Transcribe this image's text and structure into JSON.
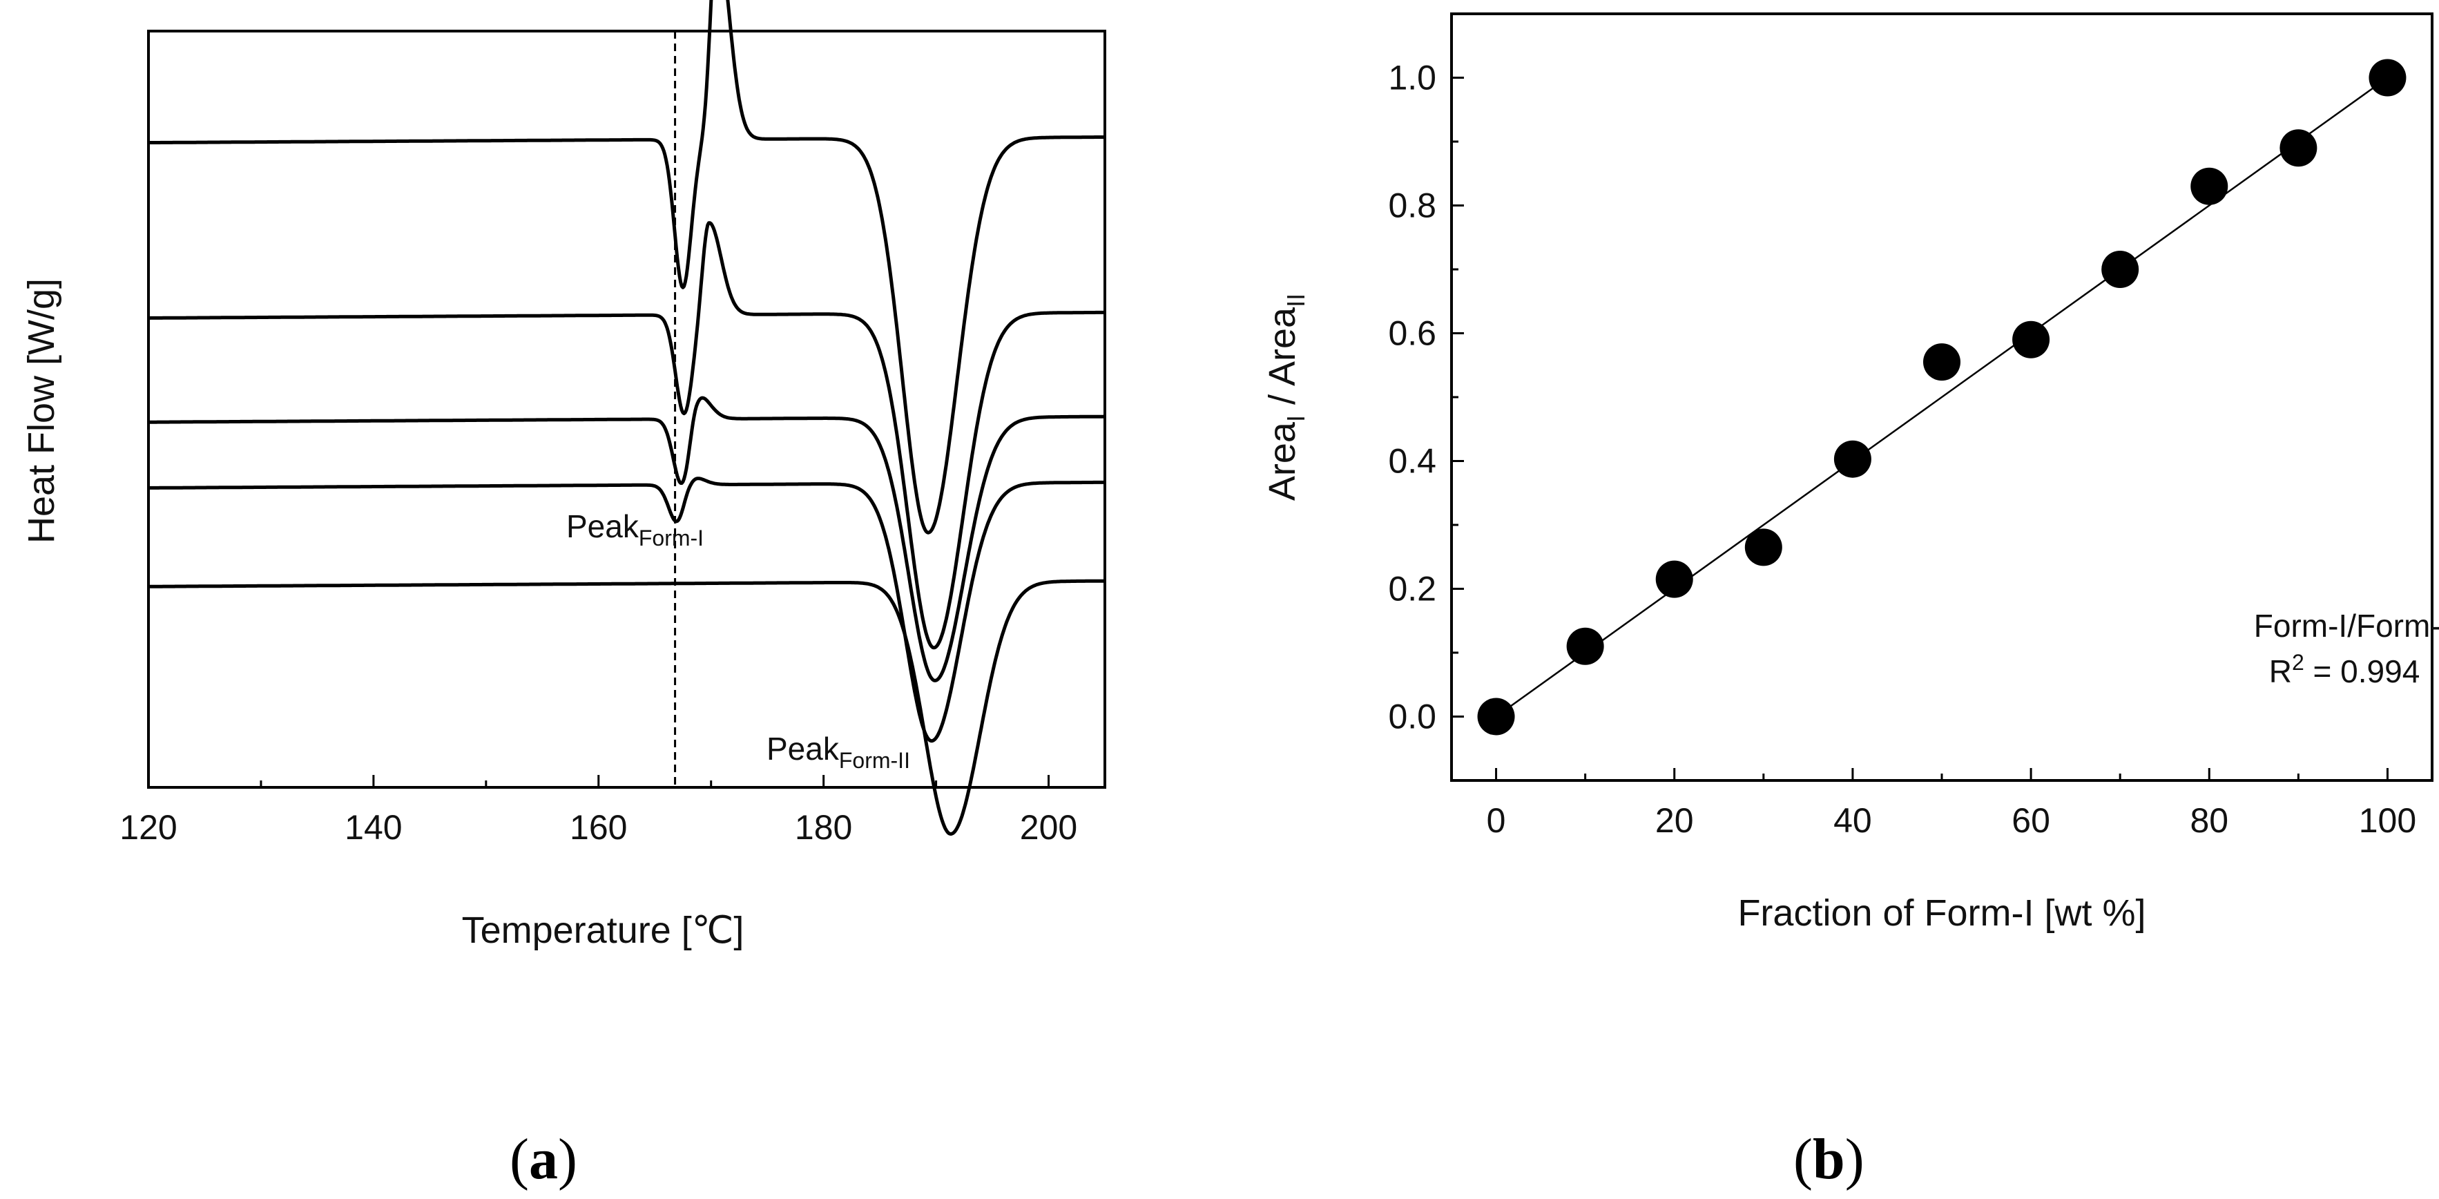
{
  "chart_data": [
    {
      "id": "a",
      "type": "line",
      "caption": "a",
      "xlabel": "Temperature [℃]",
      "ylabel": "Heat Flow [W/g]",
      "xlim": [
        120,
        205
      ],
      "xticks": [
        120,
        140,
        160,
        180,
        200
      ],
      "yticks_shown": false,
      "reference_line": {
        "x": 166.8,
        "style": "dashed"
      },
      "annotations": [
        {
          "label": "Peak",
          "subscript": "Form-I",
          "near_x": 167.5
        },
        {
          "label": "Peak",
          "subscript": "Form-II",
          "near_x": 191.5
        }
      ],
      "series": [
        {
          "name": "trace-1",
          "baseline": 5.6,
          "dip1": {
            "x": 167.5,
            "depth": 1.35
          },
          "exo": {
            "x": 170.5,
            "height": 1.9
          },
          "dip2": {
            "x": 189.3,
            "depth": 3.6
          }
        },
        {
          "name": "trace-2",
          "baseline": 4.0,
          "dip1": {
            "x": 167.6,
            "depth": 0.9
          },
          "exo": {
            "x": 169.8,
            "height": 0.85
          },
          "dip2": {
            "x": 189.8,
            "depth": 3.05
          }
        },
        {
          "name": "trace-3",
          "baseline": 3.05,
          "dip1": {
            "x": 167.4,
            "depth": 0.6
          },
          "exo": {
            "x": 168.7,
            "height": 0.25
          },
          "dip2": {
            "x": 189.9,
            "depth": 2.4
          }
        },
        {
          "name": "trace-4",
          "baseline": 2.45,
          "dip1": {
            "x": 167.0,
            "depth": 0.35
          },
          "exo": {
            "x": 168.0,
            "height": 0.1
          },
          "dip2": {
            "x": 189.6,
            "depth": 2.35
          }
        },
        {
          "name": "trace-5",
          "baseline": 1.55,
          "dip1": null,
          "exo": null,
          "dip2": {
            "x": 191.3,
            "depth": 2.3
          }
        }
      ]
    },
    {
      "id": "b",
      "type": "scatter",
      "caption": "b",
      "xlabel": "Fraction of Form-I [wt %]",
      "ylabel": "Area",
      "ylabel_sub1": "I",
      "ylabel_sep": " / ",
      "ylabel_sub2": "II",
      "xlim": [
        -5,
        105
      ],
      "ylim": [
        -0.1,
        1.1
      ],
      "xticks": [
        0,
        20,
        40,
        60,
        80,
        100
      ],
      "yticks": [
        0.0,
        0.2,
        0.4,
        0.6,
        0.8,
        1.0
      ],
      "x": [
        0,
        10,
        20,
        30,
        40,
        50,
        60,
        70,
        80,
        90,
        100
      ],
      "y": [
        0.0,
        0.11,
        0.215,
        0.265,
        0.403,
        0.555,
        0.59,
        0.7,
        0.83,
        0.89,
        1.0
      ],
      "fit_line": {
        "x": [
          0,
          100
        ],
        "y": [
          0.0,
          1.0
        ]
      },
      "legend": {
        "line1": "Form-I/Form-II",
        "line2_prefix": "R",
        "line2_sup": "2",
        "line2_suffix": " = 0.994"
      }
    }
  ]
}
